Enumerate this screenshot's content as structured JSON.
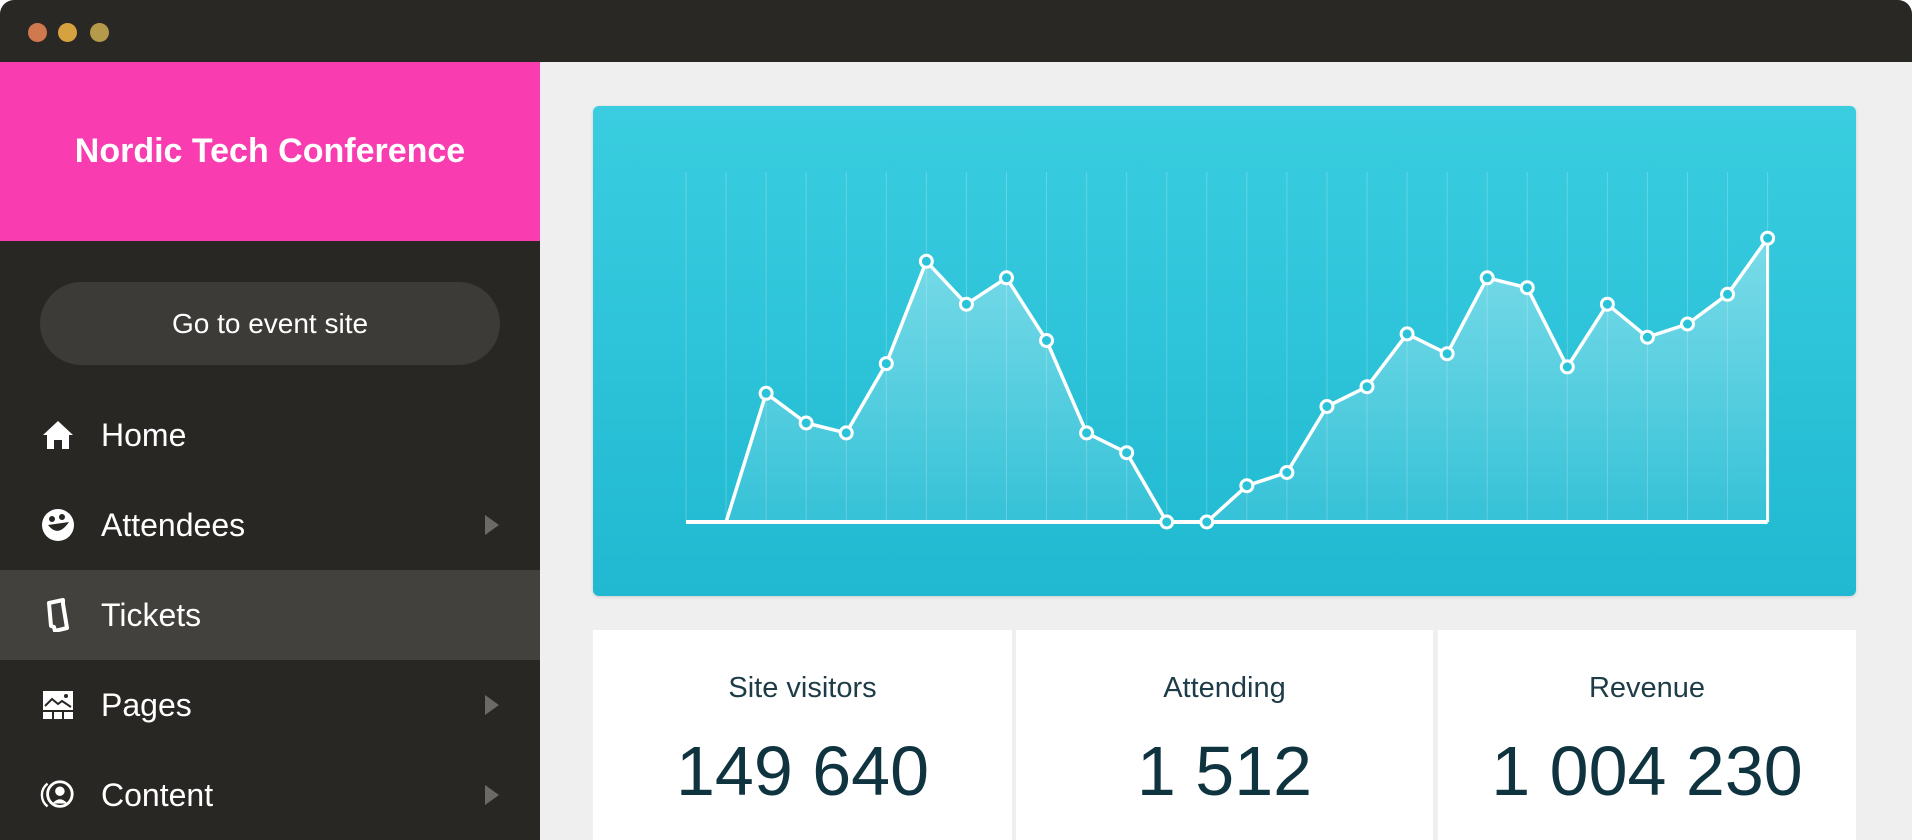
{
  "window": {
    "controls": [
      {
        "name": "close",
        "color": "#d0784e"
      },
      {
        "name": "minimize",
        "color": "#d5a23f"
      },
      {
        "name": "maximize",
        "color": "#b49a4a"
      }
    ]
  },
  "sidebar": {
    "title": "Nordic Tech Conference",
    "brand_color": "#f93db0",
    "event_button": "Go to event site",
    "items": [
      {
        "label": "Home",
        "icon": "home-icon",
        "submenu": false,
        "active": false
      },
      {
        "label": "Attendees",
        "icon": "smiley-icon",
        "submenu": true,
        "active": false
      },
      {
        "label": "Tickets",
        "icon": "ticket-icon",
        "submenu": false,
        "active": true
      },
      {
        "label": "Pages",
        "icon": "image-icon",
        "submenu": true,
        "active": false
      },
      {
        "label": "Content",
        "icon": "broadcast-user-icon",
        "submenu": true,
        "active": false
      }
    ]
  },
  "chart_data": {
    "type": "area",
    "x": [
      0,
      1,
      2,
      3,
      4,
      5,
      6,
      7,
      8,
      9,
      10,
      11,
      12,
      13,
      14,
      15,
      16,
      17,
      18,
      19,
      20,
      21,
      22,
      23,
      24,
      25,
      26,
      27
    ],
    "values": [
      null,
      0,
      39,
      30,
      27,
      48,
      79,
      66,
      74,
      55,
      27,
      21,
      0,
      0,
      11,
      15,
      35,
      41,
      57,
      51,
      74,
      71,
      47,
      66,
      56,
      60,
      69,
      86
    ],
    "ylim": [
      0,
      100
    ],
    "grid": "vertical",
    "colors": {
      "background_top": "#3acde0",
      "background_bottom": "#20b9d1",
      "line": "#ffffff"
    }
  },
  "stats": [
    {
      "label": "Site visitors",
      "value": "149 640"
    },
    {
      "label": "Attending",
      "value": "1 512"
    },
    {
      "label": "Revenue",
      "value": "1 004 230"
    }
  ]
}
